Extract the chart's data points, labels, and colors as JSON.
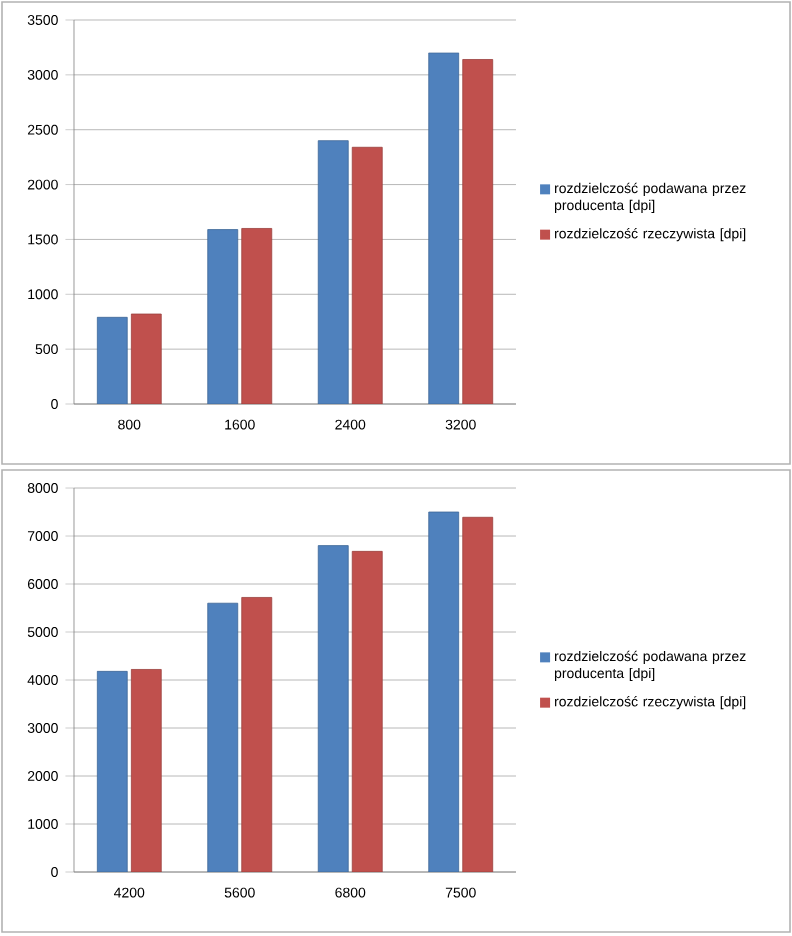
{
  "chart_data": [
    {
      "type": "bar",
      "categories": [
        "800",
        "1600",
        "2400",
        "3200"
      ],
      "series": [
        {
          "name": "rozdzielczość podawana przez producenta [dpi]",
          "color": "#4f81bd",
          "values": [
            790,
            1590,
            2400,
            3200
          ]
        },
        {
          "name": "rozdzielczość rzeczywista [dpi]",
          "color": "#c0504d",
          "values": [
            820,
            1600,
            2340,
            3140
          ]
        }
      ],
      "ylim": [
        0,
        3500
      ],
      "yticks": [
        0,
        500,
        1000,
        1500,
        2000,
        2500,
        3000,
        3500
      ],
      "grid": "y",
      "legend": "right"
    },
    {
      "type": "bar",
      "categories": [
        "4200",
        "5600",
        "6800",
        "7500"
      ],
      "series": [
        {
          "name": "rozdzielczość podawana przez producenta [dpi]",
          "color": "#4f81bd",
          "values": [
            4180,
            5600,
            6800,
            7500
          ]
        },
        {
          "name": "rozdzielczość rzeczywista [dpi]",
          "color": "#c0504d",
          "values": [
            4220,
            5720,
            6680,
            7390
          ]
        }
      ],
      "ylim": [
        0,
        8000
      ],
      "yticks": [
        0,
        1000,
        2000,
        3000,
        4000,
        5000,
        6000,
        7000,
        8000
      ],
      "grid": "y",
      "legend": "right"
    }
  ]
}
